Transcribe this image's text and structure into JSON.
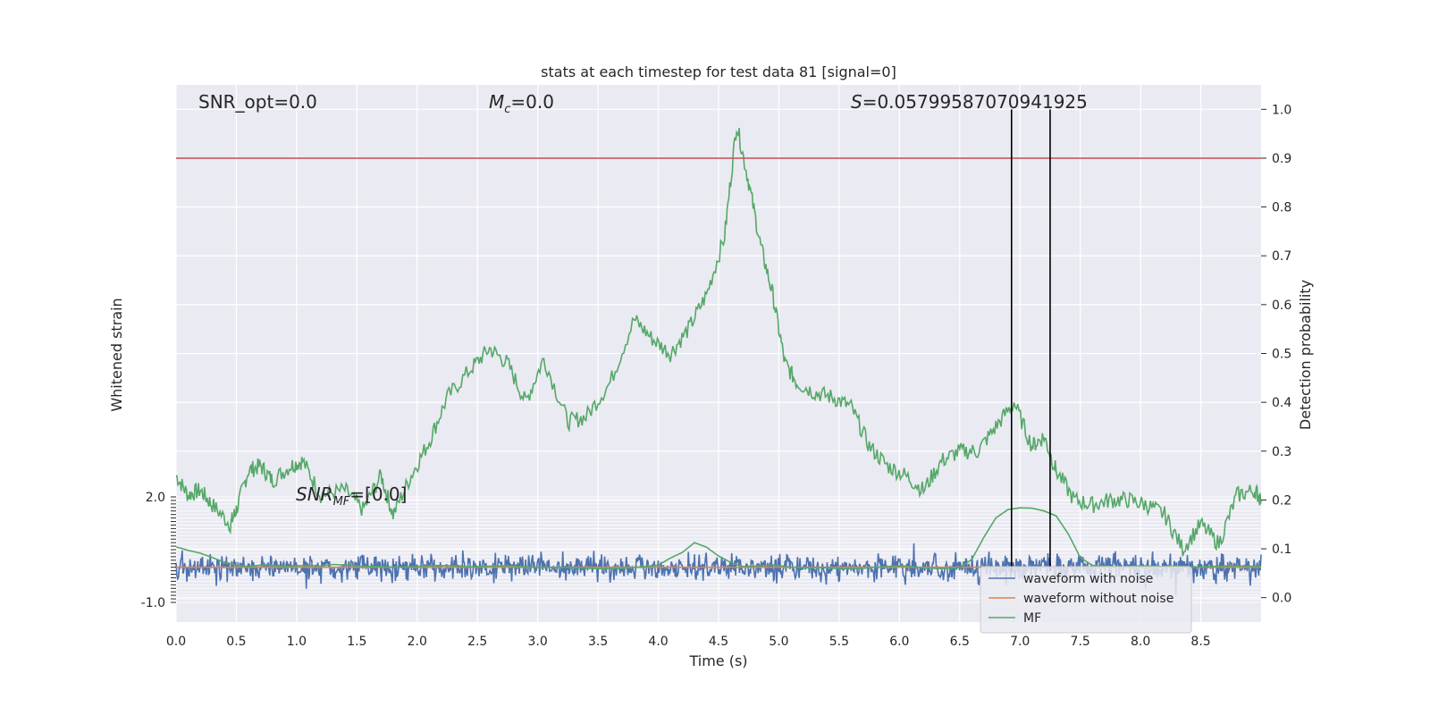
{
  "chart_data": {
    "type": "line",
    "title": "stats at each timestep for test data 81 [signal=0]",
    "xlabel": "Time (s)",
    "ylabel_left": "Whitened strain",
    "ylabel_right": "Detection probability",
    "xlim": [
      0.0,
      9.0
    ],
    "ylim_right": [
      -0.05,
      1.05
    ],
    "ylim_left": [
      -1.0,
      2.0
    ],
    "x_ticks": [
      "0.0",
      "0.5",
      "1.0",
      "1.5",
      "2.0",
      "2.5",
      "3.0",
      "3.5",
      "4.0",
      "4.5",
      "5.0",
      "5.5",
      "6.0",
      "6.5",
      "7.0",
      "7.5",
      "8.0",
      "8.5"
    ],
    "y_ticks_right": [
      "0.0",
      "0.1",
      "0.2",
      "0.3",
      "0.4",
      "0.5",
      "0.6",
      "0.7",
      "0.8",
      "0.9",
      "1.0"
    ],
    "y_ticks_left": [
      "-1.0",
      "2.0"
    ],
    "grid": true,
    "legend_position": "bottom-right",
    "threshold": 0.9,
    "vlines": [
      6.93,
      7.25
    ],
    "annotations": {
      "snr_opt": "SNR_opt=0.0",
      "mc": "M_c=0.0",
      "mc_symbol": "M",
      "mc_sub": "c",
      "mc_value": "=0.0",
      "s": "S=0.05799587070941925",
      "s_symbol": "S",
      "s_value": "=0.05799587070941925",
      "snr_mf": "SNR_MF=[0.0]",
      "snr_mf_symbol": "SNR",
      "snr_mf_sub": "MF",
      "snr_mf_value": "=[0.0]"
    },
    "series": [
      {
        "name": "waveform with noise",
        "color": "#4c72b0",
        "axis": "left",
        "kind": "noise",
        "center": 0.0,
        "amplitude": 0.18
      },
      {
        "name": "waveform without noise",
        "color": "#dd8452",
        "axis": "left",
        "x": [
          0.0,
          9.0
        ],
        "y": [
          0.0,
          0.0
        ]
      },
      {
        "name": "MF",
        "color": "#55a868",
        "axis": "left",
        "x": [
          0.0,
          0.1,
          0.2,
          0.3,
          0.4,
          0.5,
          0.6,
          0.7,
          0.8,
          0.9,
          1.0,
          1.1,
          1.2,
          1.3,
          1.45,
          1.55,
          1.7,
          1.85,
          2.0,
          2.15,
          2.3,
          2.45,
          2.6,
          2.75,
          2.9,
          3.05,
          3.2,
          3.35,
          3.5,
          3.7,
          3.9,
          4.0,
          4.1,
          4.2,
          4.3,
          4.4,
          4.5,
          4.6,
          4.7,
          4.8,
          4.95,
          5.1,
          5.25,
          5.4,
          5.55,
          5.7,
          5.85,
          6.0,
          6.1,
          6.2,
          6.35,
          6.5,
          6.6,
          6.7,
          6.8,
          6.9,
          7.0,
          7.1,
          7.2,
          7.3,
          7.4,
          7.5,
          7.6,
          7.7,
          7.85,
          8.0,
          8.15,
          8.3,
          8.45,
          8.6,
          8.75,
          8.9,
          9.0
        ],
        "y": [
          0.58,
          0.48,
          0.4,
          0.28,
          0.14,
          0.05,
          0.02,
          0.06,
          0.05,
          0.02,
          0.04,
          0.05,
          0.03,
          0.08,
          0.06,
          0.02,
          0.02,
          0.0,
          0.02,
          0.05,
          0.04,
          0.01,
          0.03,
          0.04,
          0.01,
          -0.01,
          0.0,
          -0.02,
          -0.04,
          -0.03,
          0.02,
          0.06,
          0.26,
          0.42,
          0.7,
          0.57,
          0.32,
          0.14,
          0.02,
          0.03,
          0.07,
          0.0,
          -0.02,
          -0.01,
          -0.04,
          -0.03,
          0.01,
          0.04,
          0.02,
          -0.02,
          -0.04,
          -0.01,
          0.22,
          0.85,
          1.4,
          1.64,
          1.69,
          1.68,
          1.6,
          1.46,
          0.95,
          0.28,
          0.05,
          0.03,
          0.01,
          0.04,
          0.02,
          0.03,
          0.01,
          0.02,
          0.04,
          0.03,
          0.02
        ]
      },
      {
        "name": "",
        "color": "#55a868",
        "axis": "right",
        "x": [
          0.0,
          0.1,
          0.2,
          0.3,
          0.45,
          0.5,
          0.6,
          0.7,
          0.8,
          0.95,
          1.05,
          1.2,
          1.4,
          1.55,
          1.7,
          1.8,
          1.95,
          2.1,
          2.25,
          2.45,
          2.6,
          2.75,
          2.9,
          3.05,
          3.25,
          3.4,
          3.6,
          3.8,
          3.95,
          4.1,
          4.25,
          4.4,
          4.55,
          4.65,
          4.75,
          4.85,
          4.95,
          5.05,
          5.15,
          5.3,
          5.45,
          5.6,
          5.75,
          5.9,
          6.05,
          6.2,
          6.35,
          6.5,
          6.65,
          6.8,
          6.95,
          7.1,
          7.2,
          7.3,
          7.45,
          7.6,
          7.75,
          7.9,
          8.05,
          8.2,
          8.35,
          8.5,
          8.65,
          8.8,
          8.95,
          9.0
        ],
        "y": [
          0.25,
          0.21,
          0.22,
          0.19,
          0.15,
          0.18,
          0.26,
          0.27,
          0.24,
          0.27,
          0.28,
          0.21,
          0.22,
          0.18,
          0.25,
          0.17,
          0.25,
          0.32,
          0.41,
          0.47,
          0.51,
          0.48,
          0.4,
          0.49,
          0.36,
          0.37,
          0.44,
          0.57,
          0.53,
          0.5,
          0.55,
          0.62,
          0.74,
          0.97,
          0.85,
          0.72,
          0.62,
          0.48,
          0.44,
          0.42,
          0.41,
          0.39,
          0.31,
          0.27,
          0.25,
          0.22,
          0.28,
          0.3,
          0.3,
          0.35,
          0.4,
          0.31,
          0.33,
          0.26,
          0.2,
          0.19,
          0.2,
          0.2,
          0.19,
          0.17,
          0.1,
          0.15,
          0.11,
          0.21,
          0.22,
          0.2
        ]
      }
    ]
  }
}
